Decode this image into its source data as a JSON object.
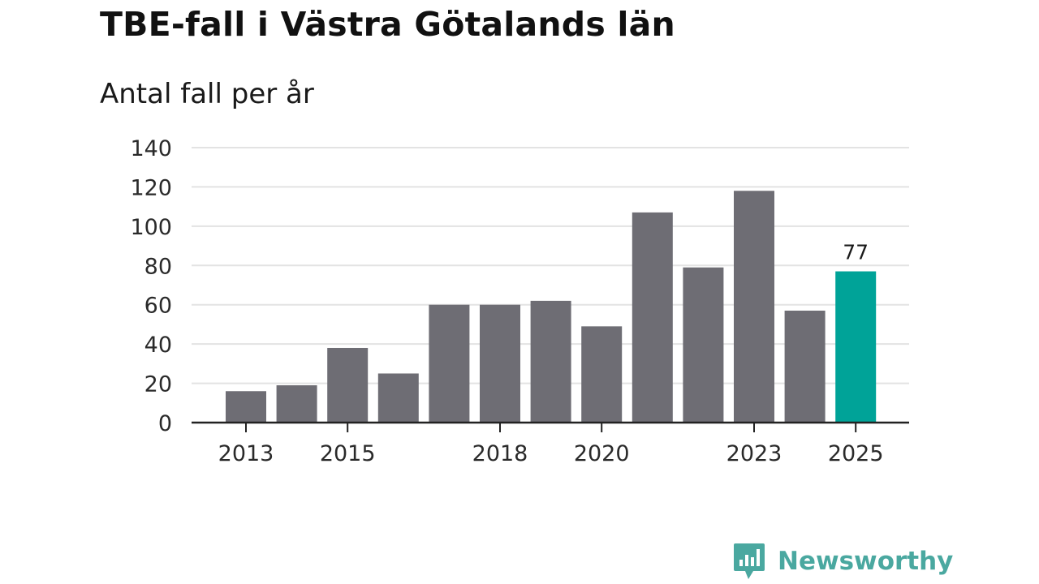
{
  "title": "TBE-fall i Västra Götalands län",
  "subtitle": "Antal fall per år",
  "brand": {
    "name": "Newsworthy",
    "icon": "newsworthy-logo-icon"
  },
  "colors": {
    "bar": "#6e6d74",
    "highlight": "#00a398",
    "grid": "#e3e3e3",
    "axis": "#222222",
    "text": "#111111",
    "brand": "#4aa8a0"
  },
  "chart_data": {
    "type": "bar",
    "title": "TBE-fall i Västra Götalands län",
    "subtitle": "Antal fall per år",
    "xlabel": "",
    "ylabel": "",
    "categories": [
      "2013",
      "2014",
      "2015",
      "2016",
      "2017",
      "2018",
      "2019",
      "2020",
      "2021",
      "2022",
      "2023",
      "2024",
      "2025"
    ],
    "values": [
      16,
      19,
      38,
      25,
      60,
      60,
      62,
      49,
      107,
      79,
      118,
      57,
      77
    ],
    "highlight_category": "2025",
    "x_tick_labels": [
      "2013",
      "2015",
      "2018",
      "2020",
      "2023",
      "2025"
    ],
    "y_ticks": [
      0,
      20,
      40,
      60,
      80,
      100,
      120,
      140
    ],
    "ylim": [
      0,
      140
    ],
    "grid": true,
    "legend": "none",
    "data_labels": [
      {
        "category": "2025",
        "text": "77"
      }
    ]
  }
}
